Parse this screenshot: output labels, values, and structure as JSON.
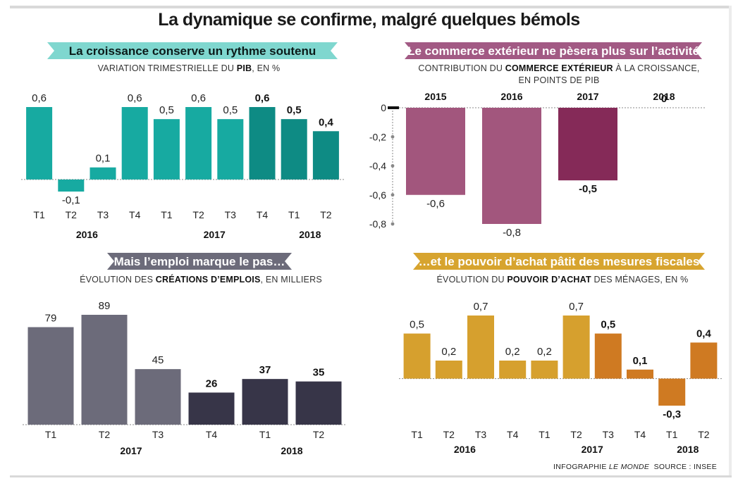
{
  "title": "La dynamique se confirme, malgré quelques bémols",
  "credits": {
    "infographie": "INFOGRAPHIE",
    "publisher": "LE MONDE",
    "source": "SOURCE : INSEE"
  },
  "colors": {
    "teal": "#17aaa1",
    "teal_dark": "#0e8b84",
    "plum": "#a2567d",
    "plum_dark": "#852a58",
    "slate": "#6c6b7a",
    "slate_dark": "#373548",
    "ochre": "#d6a02e",
    "ochre_dark": "#cf7a22"
  },
  "chart_data": [
    {
      "id": "pib",
      "type": "bar",
      "title": "La croissance conserve un rythme soutenu",
      "subtitle": [
        "VARIATION TRIMESTRIELLE DU ",
        "PIB",
        ", EN %"
      ],
      "categories": [
        "T1",
        "T2",
        "T3",
        "T4",
        "T1",
        "T2",
        "T3",
        "T4",
        "T1",
        "T2"
      ],
      "years": [
        {
          "label": "2016",
          "from": 0,
          "to": 3
        },
        {
          "label": "2017",
          "from": 4,
          "to": 7
        },
        {
          "label": "2018",
          "from": 8,
          "to": 9
        }
      ],
      "values": [
        0.6,
        -0.1,
        0.1,
        0.6,
        0.5,
        0.6,
        0.5,
        0.6,
        0.5,
        0.4
      ],
      "value_labels": [
        "0,6",
        "-0,1",
        "0,1",
        "0,6",
        "0,5",
        "0,6",
        "0,5",
        "0,6",
        "0,5",
        "0,4"
      ],
      "highlight": [
        false,
        false,
        false,
        false,
        false,
        false,
        false,
        true,
        true,
        true
      ],
      "ylim": [
        -0.1,
        0.6
      ]
    },
    {
      "id": "commerce",
      "type": "bar",
      "title": "Le commerce extérieur ne pèsera plus sur l’activité",
      "subtitle": [
        "CONTRIBUTION DU ",
        "COMMERCE EXTÉRIEUR",
        " À LA CROISSANCE,"
      ],
      "subtitle2": "EN POINTS DE PIB",
      "categories": [
        "2015",
        "2016",
        "2017",
        "2018"
      ],
      "values": [
        -0.6,
        -0.8,
        -0.5,
        0
      ],
      "value_labels": [
        "-0,6",
        "-0,8",
        "-0,5",
        "0"
      ],
      "highlight": [
        false,
        false,
        true,
        true
      ],
      "ylim": [
        -0.8,
        0
      ],
      "yticks": [
        0,
        -0.2,
        -0.4,
        -0.6,
        -0.8
      ],
      "ytick_labels": [
        "0",
        "-0,2",
        "-0,4",
        "-0,6",
        "-0,8"
      ]
    },
    {
      "id": "emploi",
      "type": "bar",
      "title": "Mais l’emploi marque le pas…",
      "subtitle": [
        "ÉVOLUTION DES ",
        "CRÉATIONS D’EMPLOIS",
        ", EN MILLIERS"
      ],
      "categories": [
        "T1",
        "T2",
        "T3",
        "T4",
        "T1",
        "T2"
      ],
      "years": [
        {
          "label": "2017",
          "from": 0,
          "to": 3
        },
        {
          "label": "2018",
          "from": 4,
          "to": 5
        }
      ],
      "values": [
        79,
        89,
        45,
        26,
        37,
        35
      ],
      "value_labels": [
        "79",
        "89",
        "45",
        "26",
        "37",
        "35"
      ],
      "highlight": [
        false,
        false,
        false,
        true,
        true,
        true
      ],
      "ylim": [
        0,
        89
      ]
    },
    {
      "id": "achat",
      "type": "bar",
      "title": "…et le pouvoir d’achat pâtit des mesures fiscales",
      "subtitle": [
        "ÉVOLUTION DU ",
        "POUVOIR D’ACHAT",
        " DES MÉNAGES, EN %"
      ],
      "categories": [
        "T1",
        "T2",
        "T3",
        "T4",
        "T1",
        "T2",
        "T3",
        "T4",
        "T1",
        "T2"
      ],
      "years": [
        {
          "label": "2016",
          "from": 0,
          "to": 3
        },
        {
          "label": "2017",
          "from": 4,
          "to": 7
        },
        {
          "label": "2018",
          "from": 8,
          "to": 9
        }
      ],
      "values": [
        0.5,
        0.2,
        0.7,
        0.2,
        0.2,
        0.7,
        0.5,
        0.1,
        -0.3,
        0.4
      ],
      "value_labels": [
        "0,5",
        "0,2",
        "0,7",
        "0,2",
        "0,2",
        "0,7",
        "0,5",
        "0,1",
        "-0,3",
        "0,4"
      ],
      "highlight": [
        false,
        false,
        false,
        false,
        false,
        false,
        true,
        true,
        true,
        true
      ],
      "ylim": [
        -0.3,
        0.7
      ]
    }
  ]
}
